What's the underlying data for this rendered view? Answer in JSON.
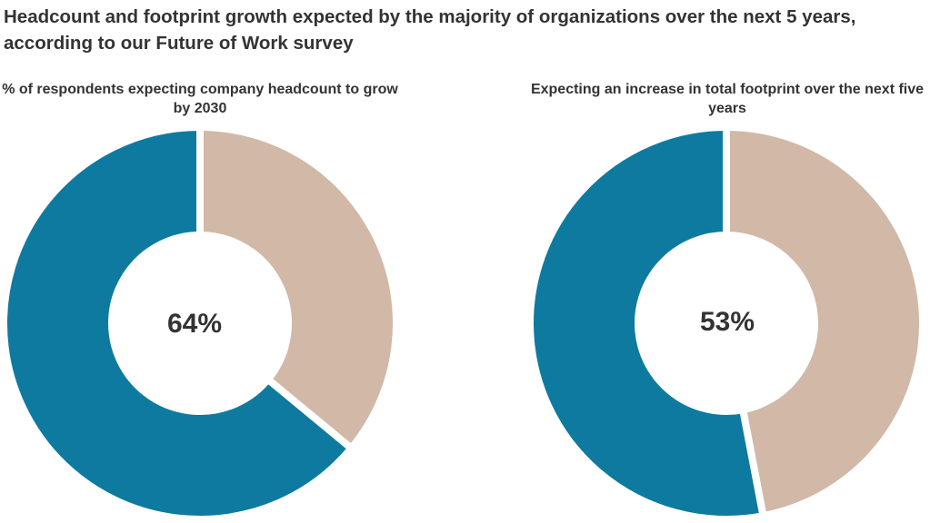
{
  "title": "Headcount and footprint growth expected by the majority of organizations over the next 5 years, according to our Future of Work survey",
  "colors": {
    "primary": "#0e7a9f",
    "secondary": "#d1b8a7",
    "text": "#333333"
  },
  "chart_data": [
    {
      "type": "pie",
      "variant": "donut",
      "title": "% of respondents expecting company headcount to grow by 2030",
      "center_label": "64%",
      "values": [
        64,
        36
      ]
    },
    {
      "type": "pie",
      "variant": "donut",
      "title": "Expecting an increase in total footprint over the next five years",
      "center_label": "53%",
      "values": [
        53,
        47
      ]
    }
  ]
}
